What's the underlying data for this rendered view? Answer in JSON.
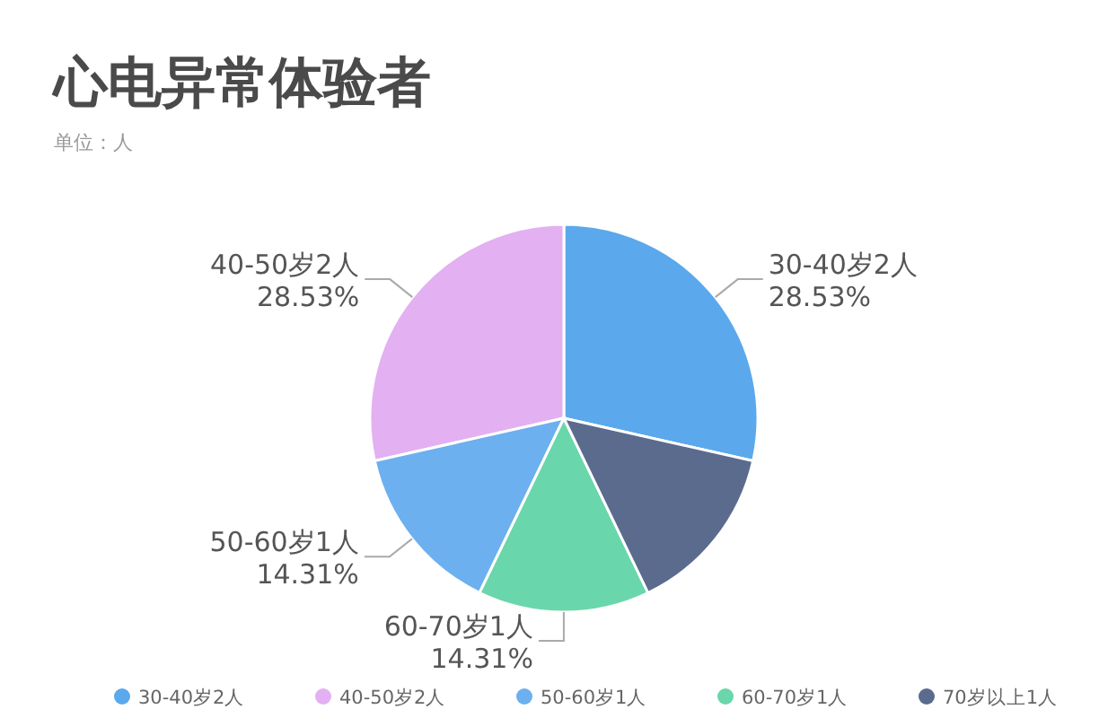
{
  "chart_data": {
    "type": "pie",
    "title": "心电异常体验者",
    "subtitle": "单位：人",
    "categories": [
      "30-40岁2人",
      "40-50岁2人",
      "50-60岁1人",
      "60-70岁1人",
      "70岁以上1人"
    ],
    "values": [
      28.53,
      28.53,
      14.31,
      14.31,
      14.32
    ],
    "colors": [
      "#5ba8ec",
      "#e3b0f2",
      "#6cb0ef",
      "#6ad6ab",
      "#5a6b8e"
    ],
    "value_labels": [
      "28.53%",
      "28.53%",
      "14.31%",
      "14.31%",
      null
    ],
    "legend": "bottom"
  }
}
